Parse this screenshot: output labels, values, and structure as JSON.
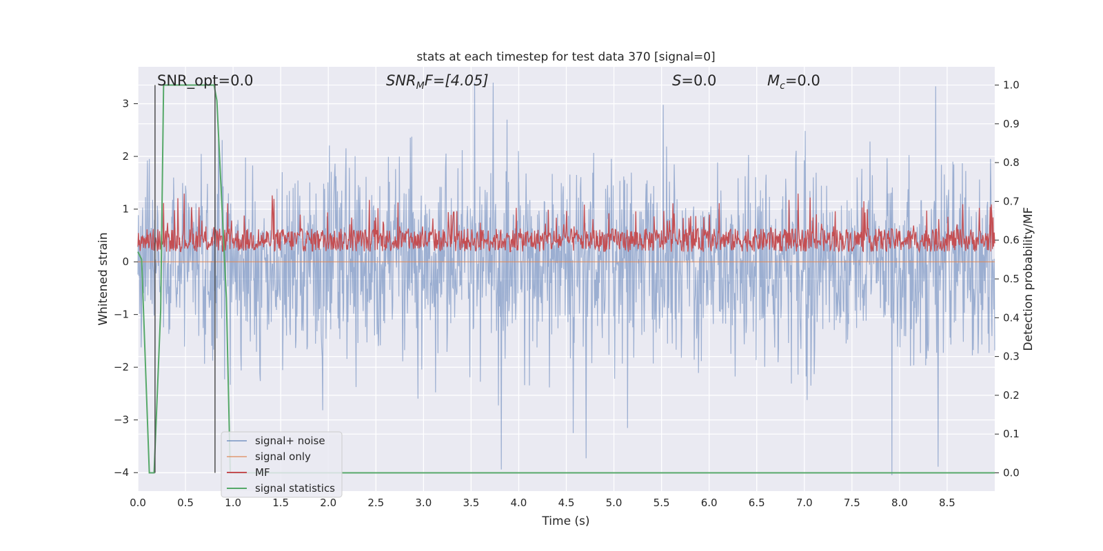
{
  "chart_data": {
    "type": "line",
    "title": "stats at each timestep for test data 370 [signal=0]",
    "xlabel": "Time (s)",
    "ylabel": "Whitened strain",
    "y2label": "Detection probability/MF",
    "xlim": [
      0.0,
      9.0
    ],
    "ylim": [
      -4.35,
      3.7
    ],
    "y2lim": [
      -0.047,
      1.047
    ],
    "grid": true,
    "xticks": [
      "0.0",
      "0.5",
      "1.0",
      "1.5",
      "2.0",
      "2.5",
      "3.0",
      "3.5",
      "4.0",
      "4.5",
      "5.0",
      "5.5",
      "6.0",
      "6.5",
      "7.0",
      "7.5",
      "8.0",
      "8.5"
    ],
    "yticks": [
      "3",
      "2",
      "1",
      "0",
      "−1",
      "−2",
      "−3",
      "−4"
    ],
    "y2ticks": [
      "1.0",
      "0.9",
      "0.8",
      "0.7",
      "0.6",
      "0.5",
      "0.4",
      "0.3",
      "0.2",
      "0.1",
      "0.0"
    ],
    "annotations": {
      "snr_opt": "SNR_opt=0.0",
      "snr_mf_base": "SNR",
      "snr_mf_sub": "M",
      "snr_mf_rest": "F=[4.05]",
      "s_base": "S",
      "s_rest": "=0.0",
      "mc_base": "M",
      "mc_sub": "c",
      "mc_rest": "=0.0"
    },
    "vlines": [
      0.18,
      0.81
    ],
    "series": [
      {
        "name": "signal+ noise",
        "color": "#4c72b0",
        "axis": "left",
        "description_values": "noise band roughly -2.2 to +2.3 with spikes to about +3.2 and -4.0",
        "mean": 0.0,
        "typical_amplitude": 2.2
      },
      {
        "name": "signal only",
        "color": "#dd8452",
        "axis": "left",
        "x": [
          0.0,
          9.0
        ],
        "y": [
          0.0,
          0.0
        ]
      },
      {
        "name": "MF",
        "color": "#c44e52",
        "axis": "right",
        "range": [
          0.55,
          0.72
        ],
        "mean": 0.6
      },
      {
        "name": "signal statistics",
        "color": "#55a868",
        "axis": "right",
        "x": [
          0.0,
          0.04,
          0.12,
          0.17,
          0.24,
          0.27,
          0.5,
          0.8,
          0.83,
          0.93,
          0.97,
          1.1,
          9.0
        ],
        "y": [
          0.57,
          0.55,
          0.0,
          0.0,
          0.42,
          1.0,
          1.0,
          1.0,
          0.96,
          0.45,
          0.0,
          0.0,
          0.0
        ]
      }
    ]
  },
  "colors": {
    "plot_bg": "#eaeaf2",
    "grid": "#ffffff",
    "vline": "#4d4d4d"
  }
}
